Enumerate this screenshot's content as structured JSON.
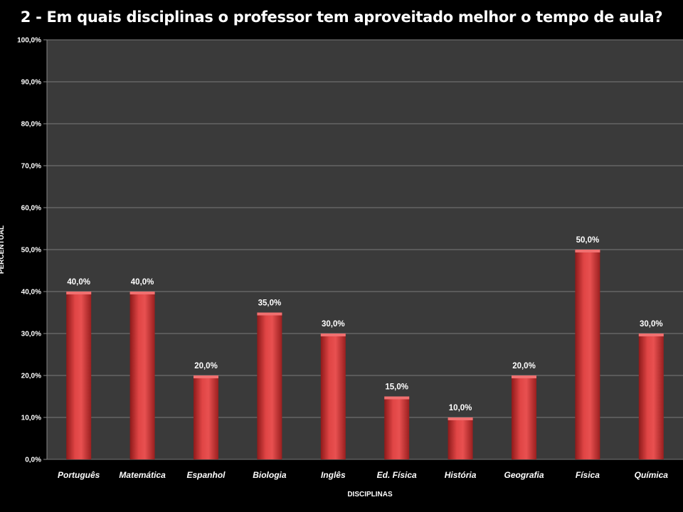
{
  "chart_data": {
    "type": "bar",
    "title": "2 - Em quais disciplinas o professor tem aproveitado melhor o tempo de aula?",
    "xlabel": "DISCIPLINAS",
    "ylabel": "PERCENTUAL",
    "categories": [
      "Português",
      "Matemática",
      "Espanhol",
      "Biologia",
      "Inglês",
      "Ed. Física",
      "História",
      "Geografia",
      "Física",
      "Química"
    ],
    "values": [
      40,
      40,
      20,
      35,
      30,
      15,
      10,
      20,
      50,
      30
    ],
    "data_labels": [
      "40,0%",
      "40,0%",
      "20,0%",
      "35,0%",
      "30,0%",
      "15,0%",
      "10,0%",
      "20,0%",
      "50,0%",
      "30,0%"
    ],
    "y_ticks": [
      "0,0%",
      "10,0%",
      "20,0%",
      "30,0%",
      "40,0%",
      "50,0%",
      "60,0%",
      "70,0%",
      "80,0%",
      "90,0%",
      "100,0%"
    ],
    "ylim": [
      0,
      100
    ],
    "grid": true,
    "colors": {
      "bar": "#d93a3a",
      "plot_bg": "#3a3a3a",
      "grid": "#7a7a7a",
      "background": "#000000"
    }
  }
}
